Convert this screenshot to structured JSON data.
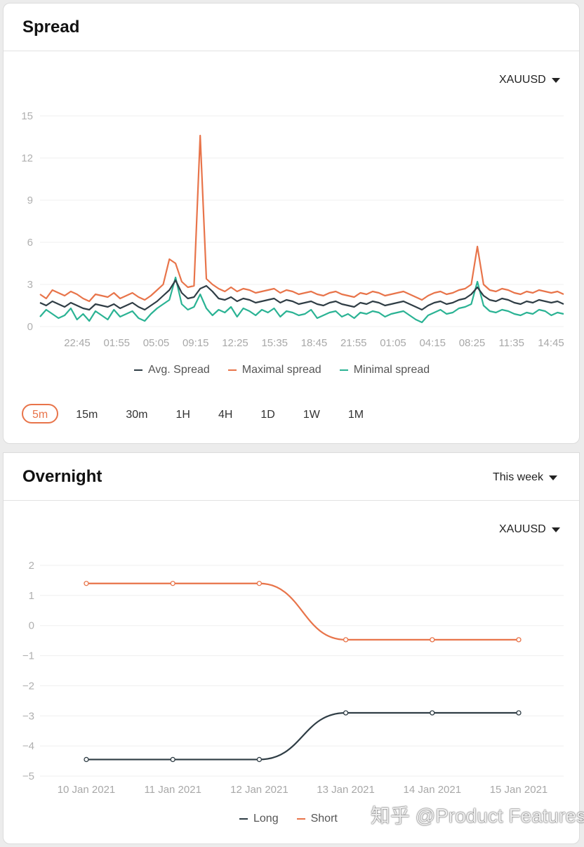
{
  "spread": {
    "title": "Spread",
    "symbol": "XAUUSD",
    "legend": [
      {
        "label": "Avg. Spread",
        "color": "#2f3d45"
      },
      {
        "label": "Maximal spread",
        "color": "#e8744a"
      },
      {
        "label": "Minimal spread",
        "color": "#2bb394"
      }
    ],
    "timeframes": [
      "5m",
      "15m",
      "30m",
      "1H",
      "4H",
      "1D",
      "1W",
      "1M"
    ],
    "active_timeframe": "5m"
  },
  "overnight": {
    "title": "Overnight",
    "period": "This week",
    "symbol": "XAUUSD",
    "legend": [
      {
        "label": "Long",
        "color": "#2f3d45"
      },
      {
        "label": "Short",
        "color": "#e8744a"
      }
    ]
  },
  "chart_data": [
    {
      "type": "line",
      "ylim": [
        0,
        15
      ],
      "yticks": [
        0,
        3,
        6,
        9,
        12,
        15
      ],
      "x_tick_labels": [
        "22:45",
        "01:55",
        "05:05",
        "09:15",
        "12:25",
        "15:35",
        "18:45",
        "21:55",
        "01:05",
        "04:15",
        "08:25",
        "11:35",
        "14:45"
      ],
      "grid": true,
      "legend_position": "bottom",
      "series": [
        {
          "name": "Avg. Spread",
          "color": "#2f3d45",
          "values": [
            1.7,
            1.5,
            1.8,
            1.6,
            1.4,
            1.7,
            1.5,
            1.3,
            1.2,
            1.6,
            1.5,
            1.4,
            1.6,
            1.3,
            1.5,
            1.7,
            1.4,
            1.2,
            1.5,
            1.8,
            2.2,
            2.6,
            3.3,
            2.4,
            2.0,
            2.1,
            2.7,
            2.9,
            2.5,
            2.0,
            1.9,
            2.1,
            1.8,
            2.0,
            1.9,
            1.7,
            1.8,
            1.9,
            2.0,
            1.7,
            1.9,
            1.8,
            1.6,
            1.7,
            1.8,
            1.6,
            1.5,
            1.7,
            1.8,
            1.6,
            1.5,
            1.4,
            1.7,
            1.6,
            1.8,
            1.7,
            1.5,
            1.6,
            1.7,
            1.8,
            1.6,
            1.4,
            1.2,
            1.5,
            1.7,
            1.8,
            1.6,
            1.7,
            1.9,
            2.0,
            2.3,
            2.8,
            2.2,
            1.9,
            1.8,
            2.0,
            1.9,
            1.7,
            1.6,
            1.8,
            1.7,
            1.9,
            1.8,
            1.7,
            1.8,
            1.6
          ]
        },
        {
          "name": "Maximal spread",
          "color": "#e8744a",
          "values": [
            2.3,
            2.0,
            2.6,
            2.4,
            2.2,
            2.5,
            2.3,
            2.0,
            1.8,
            2.3,
            2.2,
            2.1,
            2.4,
            2.0,
            2.2,
            2.4,
            2.1,
            1.9,
            2.2,
            2.6,
            3.0,
            4.8,
            4.5,
            3.2,
            2.8,
            2.9,
            13.6,
            3.4,
            3.0,
            2.7,
            2.5,
            2.8,
            2.5,
            2.7,
            2.6,
            2.4,
            2.5,
            2.6,
            2.7,
            2.4,
            2.6,
            2.5,
            2.3,
            2.4,
            2.5,
            2.3,
            2.2,
            2.4,
            2.5,
            2.3,
            2.2,
            2.1,
            2.4,
            2.3,
            2.5,
            2.4,
            2.2,
            2.3,
            2.4,
            2.5,
            2.3,
            2.1,
            1.9,
            2.2,
            2.4,
            2.5,
            2.3,
            2.4,
            2.6,
            2.7,
            3.0,
            5.7,
            3.0,
            2.6,
            2.5,
            2.7,
            2.6,
            2.4,
            2.3,
            2.5,
            2.4,
            2.6,
            2.5,
            2.4,
            2.5,
            2.3
          ]
        },
        {
          "name": "Minimal spread",
          "color": "#2bb394",
          "values": [
            0.7,
            1.2,
            0.9,
            0.6,
            0.8,
            1.3,
            0.5,
            0.9,
            0.4,
            1.1,
            0.8,
            0.5,
            1.2,
            0.7,
            0.9,
            1.1,
            0.6,
            0.4,
            0.9,
            1.3,
            1.6,
            1.9,
            3.5,
            1.6,
            1.2,
            1.4,
            2.3,
            1.3,
            0.8,
            1.2,
            1.0,
            1.4,
            0.7,
            1.3,
            1.1,
            0.8,
            1.2,
            1.0,
            1.3,
            0.7,
            1.1,
            1.0,
            0.8,
            0.9,
            1.2,
            0.6,
            0.8,
            1.0,
            1.1,
            0.7,
            0.9,
            0.6,
            1.0,
            0.9,
            1.1,
            1.0,
            0.7,
            0.9,
            1.0,
            1.1,
            0.8,
            0.5,
            0.3,
            0.8,
            1.0,
            1.2,
            0.9,
            1.0,
            1.3,
            1.4,
            1.6,
            3.2,
            1.5,
            1.1,
            1.0,
            1.2,
            1.1,
            0.9,
            0.8,
            1.0,
            0.9,
            1.2,
            1.1,
            0.8,
            1.0,
            0.9
          ]
        }
      ]
    },
    {
      "type": "line",
      "categories": [
        "10 Jan 2021",
        "11 Jan 2021",
        "12 Jan 2021",
        "13 Jan 2021",
        "14 Jan 2021",
        "15 Jan 2021"
      ],
      "ylim": [
        -5,
        2
      ],
      "yticks": [
        2,
        1,
        0,
        -1,
        -2,
        -3,
        -4,
        -5
      ],
      "grid": true,
      "legend_position": "bottom",
      "series": [
        {
          "name": "Long",
          "color": "#2f3d45",
          "values": [
            -4.45,
            -4.45,
            -4.45,
            -2.9,
            -2.9,
            -2.9
          ]
        },
        {
          "name": "Short",
          "color": "#e8744a",
          "values": [
            1.4,
            1.4,
            1.4,
            -0.47,
            -0.47,
            -0.47
          ]
        }
      ]
    }
  ],
  "watermark": "知乎 @Product Features"
}
